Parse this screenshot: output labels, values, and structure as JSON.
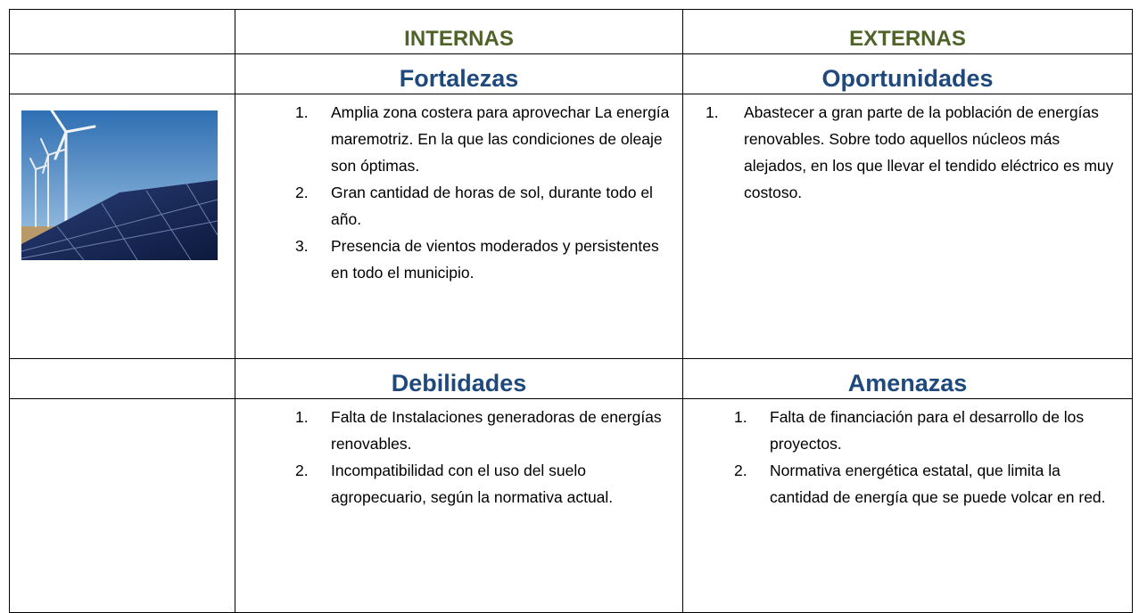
{
  "table": {
    "header": [
      "INTERNAS",
      "EXTERNAS"
    ],
    "sections": [
      {
        "titles": [
          "Fortalezas",
          "Oportunidades"
        ],
        "lists": [
          [
            {
              "number": "1.",
              "text": "Amplia zona costera para aprovechar La energía maremotriz. En la que las condiciones de oleaje son óptimas."
            },
            {
              "number": "2.",
              "text": "Gran cantidad de horas de sol, durante todo el año."
            },
            {
              "number": "3.",
              "text": "Presencia de vientos moderados y persistentes en todo el municipio."
            }
          ],
          [
            {
              "number": "1.",
              "text": "Abastecer a gran parte de la población de energías renovables. Sobre todo aquellos núcleos más alejados, en los que llevar el tendido eléctrico es muy costoso."
            }
          ]
        ]
      },
      {
        "titles": [
          "Debilidades",
          "Amenazas"
        ],
        "lists": [
          [
            {
              "number": "1.",
              "text": "Falta de Instalaciones generadoras de energías renovables."
            },
            {
              "number": "2.",
              "text": "Incompatibilidad con el uso del suelo agropecuario, según la normativa actual."
            }
          ],
          [
            {
              "number": "1.",
              "text": "Falta de financiación para el desarrollo de los proyectos."
            },
            {
              "number": "2.",
              "text": "Normativa energética estatal, que limita la cantidad de energía que se puede volcar en red."
            }
          ]
        ]
      }
    ]
  }
}
